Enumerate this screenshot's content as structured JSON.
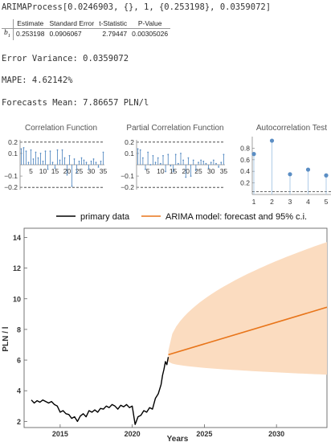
{
  "header": {
    "process_line": "ARIMAProcess[0.0246903, {}, 1, {0.253198}, 0.0359072]",
    "error_variance": "Error Variance: 0.0359072",
    "mape": "MAPE: 4.62142%",
    "forecasts_mean": "Forecasts Mean: 7.86657 PLN/l"
  },
  "param_table": {
    "columns": [
      "Estimate",
      "Standard Error",
      "t-Statistic",
      "P-Value"
    ],
    "row_label": "b1",
    "row_label_base": "b",
    "row_label_sub": "1",
    "values": [
      "0.253198",
      "0.0906067",
      "2.79447",
      "0.00305026"
    ]
  },
  "chart_data": [
    {
      "type": "bar",
      "title": "Correlation Function",
      "x": [
        1,
        2,
        3,
        4,
        5,
        6,
        7,
        8,
        9,
        10,
        11,
        12,
        13,
        14,
        15,
        16,
        17,
        18,
        19,
        20,
        21,
        22,
        23,
        24,
        25,
        26,
        27,
        28,
        29,
        30,
        31,
        32,
        33,
        34,
        35
      ],
      "values": [
        0.14,
        0.15,
        0.12,
        0.02,
        0.13,
        0.05,
        0.11,
        0.06,
        0.1,
        0.03,
        0.12,
        -0.04,
        0.12,
        0.02,
        -0.03,
        0.13,
        0.04,
        0.13,
        0.06,
        -0.09,
        0.08,
        -0.19,
        0.05,
        -0.07,
        0.03,
        0.06,
        0.04,
        0.02,
        -0.04,
        0.03,
        0.05,
        0.02,
        -0.02,
        0.03,
        0.11
      ],
      "xticks": [
        5,
        10,
        15,
        20,
        25,
        30,
        35
      ],
      "yticks": [
        0.2,
        0.1,
        -0.1,
        -0.2
      ],
      "ylim": [
        -0.22,
        0.22
      ],
      "confidence_band": [
        -0.2,
        0.2
      ],
      "color": "#5b8ec4"
    },
    {
      "type": "bar",
      "title": "Partial Correlation Function",
      "x": [
        1,
        2,
        3,
        4,
        5,
        6,
        7,
        8,
        9,
        10,
        11,
        12,
        13,
        14,
        15,
        16,
        17,
        18,
        19,
        20,
        21,
        22,
        23,
        24,
        25,
        26,
        27,
        28,
        29,
        30,
        31,
        32,
        33,
        34,
        35
      ],
      "values": [
        0.14,
        0.13,
        0.06,
        -0.04,
        0.11,
        0.0,
        0.08,
        0.02,
        0.06,
        0.01,
        0.08,
        -0.06,
        0.09,
        -0.01,
        -0.06,
        0.09,
        0.01,
        0.1,
        0.04,
        -0.11,
        0.06,
        -0.1,
        0.04,
        -0.05,
        0.02,
        0.04,
        0.03,
        0.01,
        -0.03,
        0.02,
        0.04,
        0.01,
        -0.02,
        0.02,
        0.09
      ],
      "xticks": [
        5,
        10,
        15,
        20,
        25,
        30,
        35
      ],
      "yticks": [
        0.2,
        0.1,
        -0.1,
        -0.2
      ],
      "ylim": [
        -0.22,
        0.22
      ],
      "confidence_band": [
        -0.2,
        0.2
      ],
      "color": "#5b8ec4"
    },
    {
      "type": "scatter",
      "title": "Autocorrelation Test",
      "x": [
        1,
        2,
        3,
        4,
        5
      ],
      "values": [
        0.7,
        0.93,
        0.35,
        0.43,
        0.33
      ],
      "xticks": [
        1,
        2,
        3,
        4,
        5
      ],
      "yticks": [
        0.8,
        0.6,
        0.4,
        0.2
      ],
      "ylim": [
        0,
        1.0
      ],
      "threshold": 0.05,
      "color": "#5b8ec4"
    },
    {
      "type": "line",
      "xlabel": "Years",
      "ylabel": "PLN / l",
      "xticks": [
        2015,
        2020,
        2025,
        2030
      ],
      "yticks": [
        2,
        4,
        6,
        8,
        10,
        12,
        14
      ],
      "xlim": [
        2012.5,
        2033.5
      ],
      "ylim": [
        1.6,
        14.6
      ],
      "legend": [
        "primary data",
        "ARIMA model: forecast and 95% c.i."
      ],
      "legend_position": "top",
      "colors": {
        "primary": "#000000",
        "forecast": "#e8751a",
        "band": "#fbdcc0"
      },
      "series": [
        {
          "name": "primary data",
          "x": [
            2013.0,
            2013.2,
            2013.4,
            2013.6,
            2013.8,
            2014.0,
            2014.2,
            2014.4,
            2014.6,
            2014.8,
            2015.0,
            2015.2,
            2015.4,
            2015.6,
            2015.8,
            2016.0,
            2016.2,
            2016.4,
            2016.6,
            2016.8,
            2017.0,
            2017.2,
            2017.4,
            2017.6,
            2017.8,
            2018.0,
            2018.2,
            2018.4,
            2018.6,
            2018.8,
            2019.0,
            2019.2,
            2019.4,
            2019.6,
            2019.8,
            2020.0,
            2020.2,
            2020.4,
            2020.6,
            2020.8,
            2021.0,
            2021.2,
            2021.4,
            2021.6,
            2021.8,
            2022.0,
            2022.1,
            2022.2,
            2022.3,
            2022.4,
            2022.5
          ],
          "values": [
            3.4,
            3.2,
            3.35,
            3.25,
            3.4,
            3.3,
            3.2,
            3.3,
            3.1,
            3.0,
            2.6,
            2.7,
            2.5,
            2.45,
            2.2,
            2.3,
            2.0,
            2.35,
            2.5,
            2.3,
            2.7,
            2.6,
            2.75,
            2.6,
            2.85,
            2.8,
            3.0,
            2.9,
            3.1,
            3.0,
            2.8,
            3.05,
            2.95,
            3.1,
            2.9,
            3.0,
            1.8,
            2.3,
            2.4,
            2.7,
            2.6,
            2.9,
            2.8,
            3.5,
            3.8,
            4.4,
            5.0,
            5.4,
            5.9,
            5.7,
            6.2
          ]
        },
        {
          "name": "ARIMA model: forecast and 95% c.i.",
          "x": [
            2022.5,
            2033.5
          ],
          "values": [
            6.35,
            9.45
          ],
          "band_upper": [
            6.6,
            13.7
          ],
          "band_lower": [
            5.9,
            5.05
          ]
        }
      ]
    }
  ]
}
